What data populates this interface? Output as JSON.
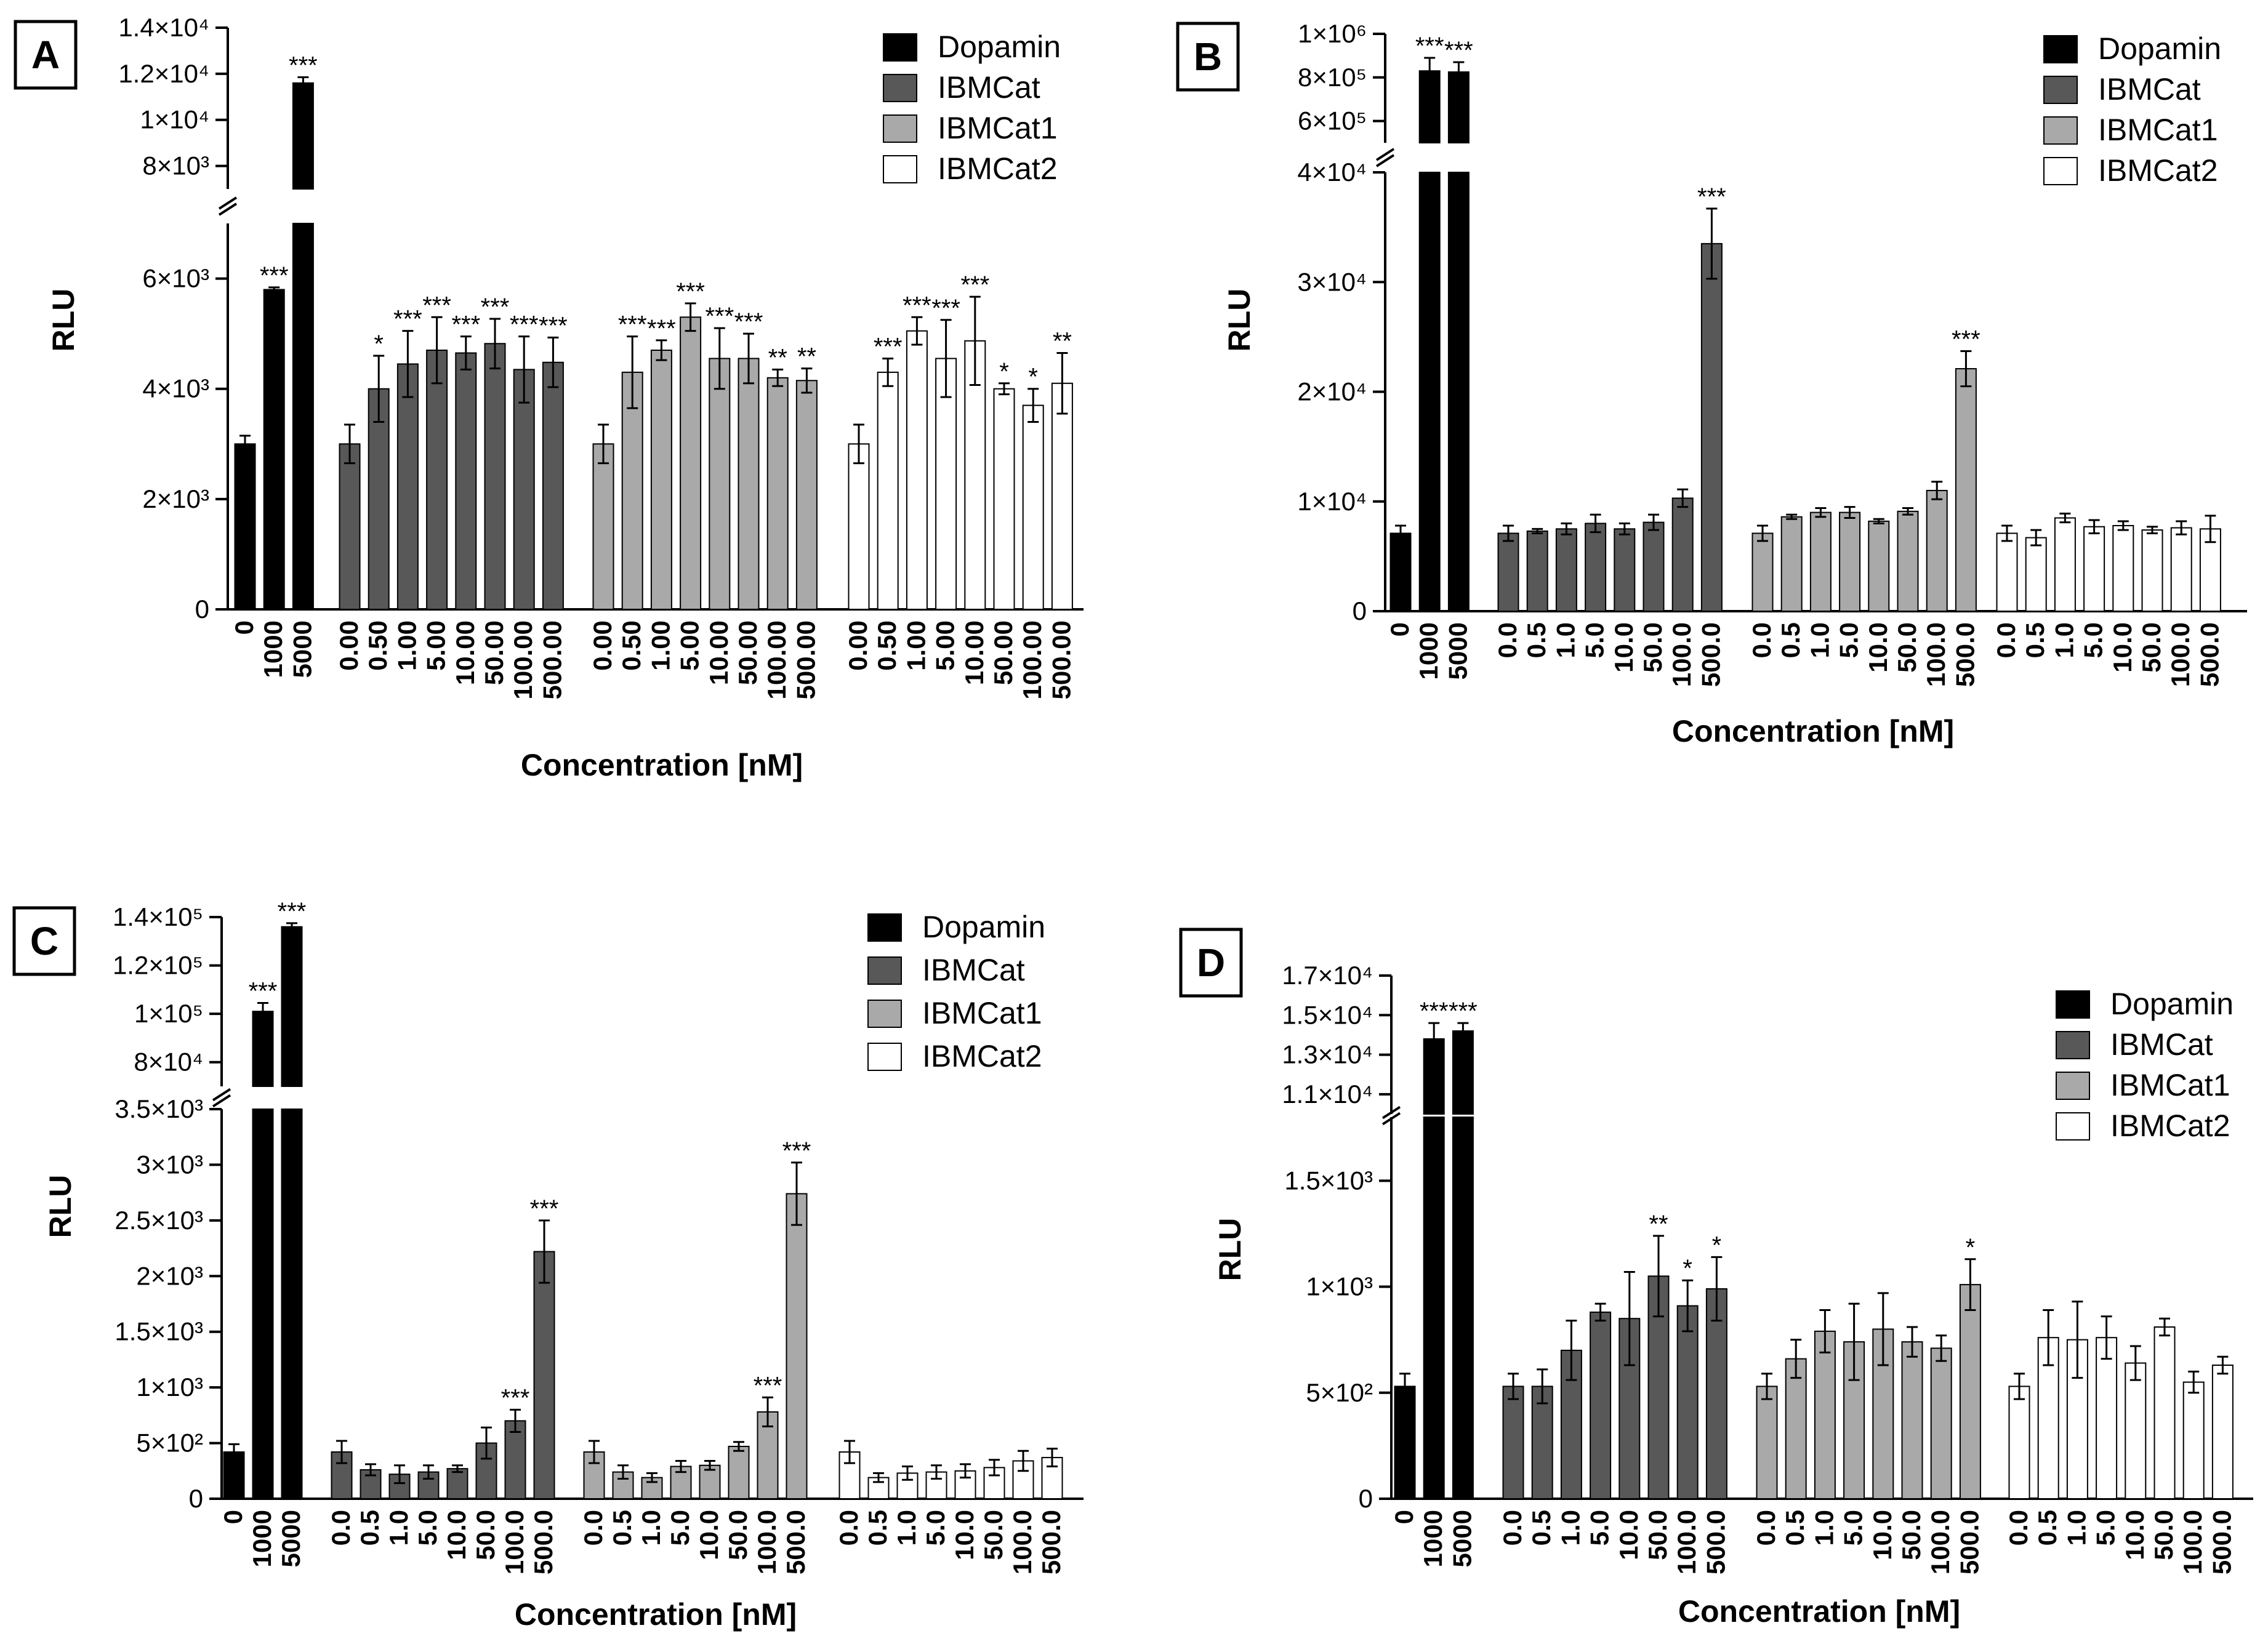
{
  "legend": [
    "Dopamin",
    "IBMCat",
    "IBMCat1",
    "IBMCat2"
  ],
  "series_colors": [
    "#000000",
    "#585858",
    "#a9a9a9",
    "#ffffff"
  ],
  "chart_data": [
    {
      "panel": "A",
      "type": "bar",
      "xlabel": "Concentration [nM]",
      "ylabel": "RLU",
      "legend_placement": "top-right",
      "lower_axis": {
        "range": [
          0,
          7000
        ],
        "ticks": [
          0,
          2000,
          4000,
          6000
        ],
        "tick_labels": [
          "0",
          "2×10³",
          "4×10³",
          "6×10³"
        ]
      },
      "upper_axis": {
        "range": [
          7000,
          14000
        ],
        "ticks": [
          8000,
          10000,
          12000,
          14000
        ],
        "tick_labels": [
          "8×10³",
          "1×10⁴",
          "1.2×10⁴",
          "1.4×10⁴"
        ]
      },
      "groups": [
        {
          "series": "Dopamin",
          "categories": [
            "0",
            "1000",
            "5000"
          ],
          "values": [
            3000,
            5800,
            11600
          ],
          "errors": [
            150,
            40,
            250
          ],
          "stars": [
            "",
            "***",
            "***"
          ]
        },
        {
          "series": "IBMCat",
          "categories": [
            "0.00",
            "0.50",
            "1.00",
            "5.00",
            "10.00",
            "50.00",
            "100.00",
            "500.00"
          ],
          "values": [
            3000,
            4000,
            4450,
            4700,
            4650,
            4820,
            4350,
            4480
          ],
          "errors": [
            350,
            600,
            600,
            600,
            300,
            450,
            600,
            450
          ],
          "stars": [
            "",
            "*",
            "***",
            "***",
            "***",
            "***",
            "***",
            "***"
          ]
        },
        {
          "series": "IBMCat1",
          "categories": [
            "0.00",
            "0.50",
            "1.00",
            "5.00",
            "10.00",
            "50.00",
            "100.00",
            "500.00"
          ],
          "values": [
            3000,
            4300,
            4700,
            5300,
            4550,
            4550,
            4200,
            4150
          ],
          "errors": [
            350,
            650,
            180,
            250,
            550,
            450,
            150,
            220
          ],
          "stars": [
            "",
            "***",
            "***",
            "***",
            "***",
            "***",
            "**",
            "**"
          ]
        },
        {
          "series": "IBMCat2",
          "categories": [
            "0.00",
            "0.50",
            "1.00",
            "5.00",
            "10.00",
            "50.00",
            "100.00",
            "500.00"
          ],
          "values": [
            3000,
            4300,
            5050,
            4550,
            4870,
            4000,
            3700,
            4100
          ],
          "errors": [
            350,
            250,
            250,
            700,
            800,
            100,
            300,
            550
          ],
          "stars": [
            "",
            "***",
            "***",
            "***",
            "***",
            "*",
            "*",
            "**"
          ]
        }
      ]
    },
    {
      "panel": "B",
      "type": "bar",
      "xlabel": "Concentration [nM]",
      "ylabel": "RLU",
      "legend_placement": "top-right",
      "lower_axis": {
        "range": [
          0,
          40000
        ],
        "ticks": [
          0,
          10000,
          20000,
          30000,
          40000
        ],
        "tick_labels": [
          "0",
          "1×10⁴",
          "2×10⁴",
          "3×10⁴",
          "4×10⁴"
        ]
      },
      "upper_axis": {
        "range": [
          500000,
          1000000
        ],
        "ticks": [
          600000,
          800000,
          1000000
        ],
        "tick_labels": [
          "6×10⁵",
          "8×10⁵",
          "1×10⁶"
        ]
      },
      "groups": [
        {
          "series": "Dopamin",
          "categories": [
            "0",
            "1000",
            "5000"
          ],
          "values": [
            7100,
            830000,
            825000
          ],
          "errors": [
            700,
            60000,
            45000
          ],
          "stars": [
            "",
            "***",
            "***"
          ]
        },
        {
          "series": "IBMCat",
          "categories": [
            "0.0",
            "0.5",
            "1.0",
            "5.0",
            "10.0",
            "50.0",
            "100.0",
            "500.0"
          ],
          "values": [
            7100,
            7300,
            7500,
            8000,
            7500,
            8100,
            10300,
            33500
          ],
          "errors": [
            700,
            200,
            500,
            800,
            500,
            700,
            800,
            3200
          ],
          "stars": [
            "",
            "",
            "",
            "",
            "",
            "",
            "",
            "***"
          ]
        },
        {
          "series": "IBMCat1",
          "categories": [
            "0.0",
            "0.5",
            "1.0",
            "5.0",
            "10.0",
            "50.0",
            "100.0",
            "500.0"
          ],
          "values": [
            7100,
            8600,
            9000,
            9000,
            8200,
            9100,
            11000,
            22100
          ],
          "errors": [
            700,
            200,
            400,
            500,
            200,
            300,
            800,
            1600
          ],
          "stars": [
            "",
            "",
            "",
            "",
            "",
            "",
            "",
            "***"
          ]
        },
        {
          "series": "IBMCat2",
          "categories": [
            "0.0",
            "0.5",
            "1.0",
            "5.0",
            "10.0",
            "50.0",
            "100.0",
            "500.0"
          ],
          "values": [
            7100,
            6700,
            8500,
            7700,
            7800,
            7400,
            7600,
            7500
          ],
          "errors": [
            700,
            700,
            400,
            600,
            400,
            300,
            600,
            1200
          ],
          "stars": [
            "",
            "",
            "",
            "",
            "",
            "",
            "",
            ""
          ]
        }
      ]
    },
    {
      "panel": "C",
      "type": "bar",
      "xlabel": "Concentration [nM]",
      "ylabel": "RLU",
      "legend_placement": "top-right",
      "lower_axis": {
        "range": [
          0,
          3500
        ],
        "ticks": [
          0,
          500,
          1000,
          1500,
          2000,
          2500,
          3000,
          3500
        ],
        "tick_labels": [
          "0",
          "5×10²",
          "1×10³",
          "1.5×10³",
          "2×10³",
          "2.5×10³",
          "3×10³",
          "3.5×10³"
        ]
      },
      "upper_axis": {
        "range": [
          70000,
          140000
        ],
        "ticks": [
          80000,
          100000,
          120000,
          140000
        ],
        "tick_labels": [
          "8×10⁴",
          "1×10⁵",
          "1.2×10⁵",
          "1.4×10⁵"
        ]
      },
      "groups": [
        {
          "series": "Dopamin",
          "categories": [
            "0",
            "1000",
            "5000"
          ],
          "values": [
            420,
            101000,
            136000
          ],
          "errors": [
            70,
            3500,
            1500
          ],
          "stars": [
            "",
            "***",
            "***"
          ]
        },
        {
          "series": "IBMCat",
          "categories": [
            "0.0",
            "0.5",
            "1.0",
            "5.0",
            "10.0",
            "50.0",
            "100.0",
            "500.0"
          ],
          "values": [
            420,
            260,
            220,
            240,
            270,
            500,
            700,
            2220
          ],
          "errors": [
            100,
            50,
            80,
            60,
            30,
            140,
            100,
            280
          ],
          "stars": [
            "",
            "",
            "",
            "",
            "",
            "",
            "***",
            "***"
          ]
        },
        {
          "series": "IBMCat1",
          "categories": [
            "0.0",
            "0.5",
            "1.0",
            "5.0",
            "10.0",
            "50.0",
            "100.0",
            "500.0"
          ],
          "values": [
            420,
            240,
            190,
            290,
            300,
            470,
            780,
            2740
          ],
          "errors": [
            100,
            60,
            40,
            50,
            40,
            40,
            130,
            280
          ],
          "stars": [
            "",
            "",
            "",
            "",
            "",
            "",
            "***",
            "***"
          ]
        },
        {
          "series": "IBMCat2",
          "categories": [
            "0.0",
            "0.5",
            "1.0",
            "5.0",
            "10.0",
            "50.0",
            "100.0",
            "500.0"
          ],
          "values": [
            420,
            190,
            230,
            240,
            250,
            280,
            340,
            370
          ],
          "errors": [
            100,
            40,
            60,
            60,
            60,
            70,
            90,
            80
          ],
          "stars": [
            "",
            "",
            "",
            "",
            "",
            "",
            "",
            ""
          ]
        }
      ]
    },
    {
      "panel": "D",
      "type": "bar",
      "xlabel": "Concentration [nM]",
      "ylabel": "RLU",
      "legend_placement": "top-right",
      "lower_axis": {
        "range": [
          0,
          1800
        ],
        "ticks": [
          0,
          500,
          1000,
          1500
        ],
        "tick_labels": [
          "0",
          "5×10²",
          "1×10³",
          "1.5×10³"
        ]
      },
      "upper_axis": {
        "range": [
          10000,
          17000
        ],
        "ticks": [
          11000,
          13000,
          15000,
          17000
        ],
        "tick_labels": [
          "1.1×10⁴",
          "1.3×10⁴",
          "1.5×10⁴",
          "1.7×10⁴"
        ]
      },
      "groups": [
        {
          "series": "Dopamin",
          "categories": [
            "0",
            "1000",
            "5000"
          ],
          "values": [
            530,
            13800,
            14200
          ],
          "errors": [
            60,
            800,
            400
          ],
          "stars": [
            "",
            "***",
            "***"
          ]
        },
        {
          "series": "IBMCat",
          "categories": [
            "0.0",
            "0.5",
            "1.0",
            "5.0",
            "10.0",
            "50.0",
            "100.0",
            "500.0"
          ],
          "values": [
            530,
            530,
            700,
            880,
            850,
            1050,
            910,
            990
          ],
          "errors": [
            60,
            80,
            140,
            40,
            220,
            190,
            120,
            150
          ],
          "stars": [
            "",
            "",
            "",
            "",
            "",
            "**",
            "*",
            "*"
          ]
        },
        {
          "series": "IBMCat1",
          "categories": [
            "0.0",
            "0.5",
            "1.0",
            "5.0",
            "10.0",
            "50.0",
            "100.0",
            "500.0"
          ],
          "values": [
            530,
            660,
            790,
            740,
            800,
            740,
            710,
            1010
          ],
          "errors": [
            60,
            90,
            100,
            180,
            170,
            70,
            60,
            120
          ],
          "stars": [
            "",
            "",
            "",
            "",
            "",
            "",
            "",
            "*"
          ]
        },
        {
          "series": "IBMCat2",
          "categories": [
            "0.0",
            "0.5",
            "1.0",
            "5.0",
            "10.0",
            "50.0",
            "100.0",
            "500.0"
          ],
          "values": [
            530,
            760,
            750,
            760,
            640,
            810,
            550,
            630
          ],
          "errors": [
            60,
            130,
            180,
            100,
            80,
            40,
            50,
            40
          ],
          "stars": [
            "",
            "",
            "",
            "",
            "",
            "",
            "",
            ""
          ]
        }
      ]
    }
  ]
}
